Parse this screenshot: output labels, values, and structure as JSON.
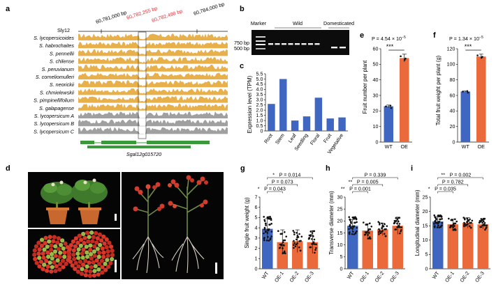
{
  "panel_labels": {
    "a": "a",
    "b": "b",
    "c": "c",
    "d": "d",
    "e": "e",
    "f": "f",
    "g": "g",
    "h": "h",
    "i": "i"
  },
  "panel_a": {
    "chrom": "Sly12",
    "coords": [
      "60,781,000 bp",
      "60,782,255 bp",
      "60,782,498 bp",
      "60,784,000 bp"
    ],
    "species": [
      "S. lycopersicoides",
      "S. habrochaites",
      "S. pennellii",
      "S. chilense",
      "S. peruvianum",
      "S. corneliomulleri",
      "S. neorickii",
      "S. chmielewskii",
      "S. pimpinellifolium",
      "S. galapagense",
      "S. lycopersicum A",
      "S. lycopersicum B",
      "S. lycopersicum C"
    ],
    "gene": "Sgal12g015720",
    "colors": {
      "wild": "#e8b04a",
      "domesticated": "#a0a0a0",
      "gene": "#3a9a3a",
      "highlight": "#d9363e"
    }
  },
  "panel_b": {
    "headers": [
      "Marker",
      "Wild",
      "Domesticated"
    ],
    "sizes": [
      "750 bp",
      "500 bp"
    ]
  },
  "panel_c": {
    "chart_data": {
      "type": "bar",
      "categories": [
        "Root",
        "Stem",
        "Leaf",
        "Seedling",
        "Floral",
        "Fruit",
        "Vegetative"
      ],
      "values": [
        2.6,
        5.0,
        1.0,
        1.4,
        3.2,
        1.2,
        1.3
      ],
      "ylabel": "Expression level (TPM)",
      "yticks": [
        "0",
        "0.5",
        "1.0",
        "1.5",
        "2.0",
        "2.5",
        "3.0",
        "3.5",
        "4.0",
        "4.5",
        "5.0",
        "5.5"
      ],
      "ylim": [
        0,
        5.5
      ],
      "color": "#3f66c0"
    }
  },
  "panel_d": {
    "scale": ""
  },
  "panel_e": {
    "chart_data": {
      "type": "bar",
      "categories": [
        "WT",
        "OE"
      ],
      "values": [
        23,
        54
      ],
      "ylabel": "Fruit number per plant",
      "yticks": [
        "0",
        "10",
        "20",
        "30",
        "40",
        "50",
        "60"
      ],
      "ylim": [
        0,
        60
      ],
      "p_prefix": "P = 4.54 × 10",
      "p_exp": "−5",
      "stars": "***"
    }
  },
  "panel_f": {
    "chart_data": {
      "type": "bar",
      "categories": [
        "WT",
        "OE"
      ],
      "values": [
        65,
        110
      ],
      "ylabel": "Total fruit weight per plant (g)",
      "yticks": [
        "0",
        "20",
        "40",
        "60",
        "80",
        "100",
        "120"
      ],
      "ylim": [
        0,
        120
      ],
      "p_prefix": "P = 1.34 × 10",
      "p_exp": "−5",
      "stars": "***"
    }
  },
  "panel_g": {
    "chart_data": {
      "type": "bar",
      "categories": [
        "WT",
        "OE-1",
        "OE-2",
        "OE-3"
      ],
      "values": [
        3.9,
        2.6,
        2.7,
        2.6
      ],
      "ylabel": "Single fruit weight (g)",
      "yticks": [
        "0",
        "1",
        "2",
        "3",
        "4",
        "5",
        "6",
        "7"
      ],
      "ylim": [
        0,
        7
      ],
      "pvalues": [
        "P = 0.014",
        "P = 0.073",
        "P = 0.043"
      ],
      "stars": [
        "*",
        "",
        "*"
      ]
    }
  },
  "panel_h": {
    "chart_data": {
      "type": "bar",
      "categories": [
        "WT",
        "OE-1",
        "OE-2",
        "OE-3"
      ],
      "values": [
        18,
        16,
        16.5,
        18
      ],
      "ylabel": "Transverse diameter (mm)",
      "yticks": [
        "0",
        "5",
        "10",
        "15",
        "20",
        "25",
        "30"
      ],
      "ylim": [
        0,
        30
      ],
      "pvalues": [
        "P = 0.339",
        "P = 0.005",
        "P = 0.001"
      ],
      "stars": [
        "",
        "**",
        "**"
      ]
    }
  },
  "panel_i": {
    "chart_data": {
      "type": "bar",
      "categories": [
        "WT",
        "OE-1",
        "OE-2",
        "OE-3"
      ],
      "values": [
        16.5,
        15.5,
        16,
        15.5
      ],
      "ylabel": "Longitudinal diameter (mm)",
      "yticks": [
        "0",
        "5",
        "10",
        "15",
        "20",
        "25"
      ],
      "ylim": [
        0,
        25
      ],
      "pvalues": [
        "P = 0.002",
        "P = 0.782",
        "P = 0.035"
      ],
      "stars": [
        "**",
        "",
        "*"
      ]
    }
  },
  "colors": {
    "wt": "#3f66c0",
    "oe": "#ea6a3c"
  }
}
